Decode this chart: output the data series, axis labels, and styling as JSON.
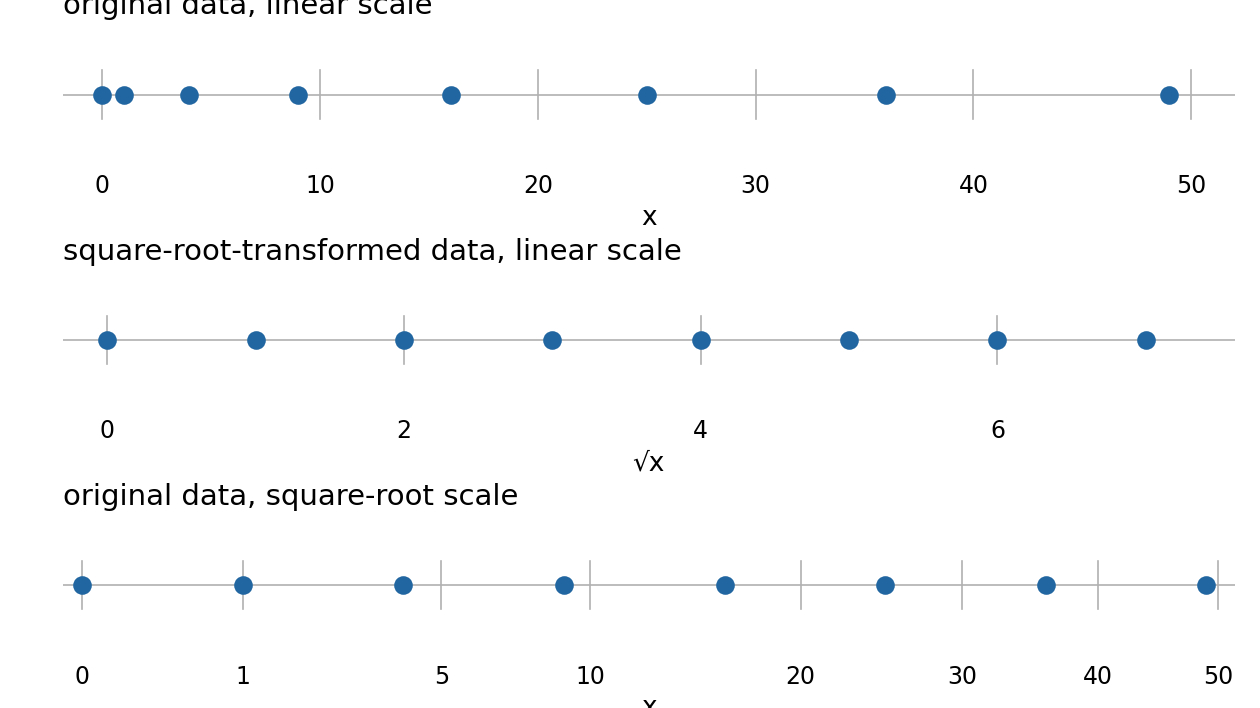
{
  "data_values": [
    0,
    1,
    4,
    9,
    16,
    25,
    36,
    49
  ],
  "sqrt_values": [
    0,
    1,
    2,
    3,
    4,
    5,
    6,
    7
  ],
  "dot_color": "#2166a0",
  "dot_size": 180,
  "line_color": "#b0b0b0",
  "tick_color": "#b0b0b0",
  "title1": "original data, linear scale",
  "title2": "square-root-transformed data, linear scale",
  "title3": "original data, square-root scale",
  "xlabel1": "x",
  "xlabel2": "√x",
  "xlabel3": "x",
  "panel1_xlim": [
    -1.8,
    52.0
  ],
  "panel1_xticks": [
    0,
    10,
    20,
    30,
    40,
    50
  ],
  "panel2_xlim": [
    -0.3,
    7.6
  ],
  "panel2_xticks": [
    0,
    2,
    4,
    6
  ],
  "panel3_xtick_labels": [
    0,
    1,
    5,
    10,
    20,
    30,
    40,
    50
  ],
  "panel3_xlim_orig": [
    -0.5,
    51.5
  ],
  "title_fontsize": 21,
  "xlabel_fontsize": 19,
  "tick_fontsize": 17,
  "background_color": "#ffffff"
}
